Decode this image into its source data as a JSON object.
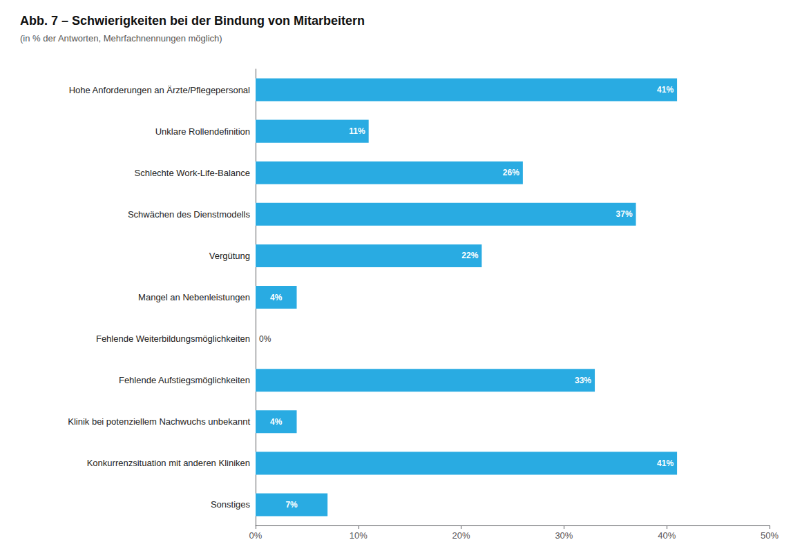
{
  "chart_data": {
    "type": "bar",
    "orientation": "horizontal",
    "title": "Abb. 7 – Schwierigkeiten bei der Bindung von Mitarbeitern",
    "subtitle": "(in % der Antworten, Mehrfachnennungen möglich)",
    "categories": [
      "Hohe Anforderungen an Ärzte/Pflegepersonal",
      "Unklare Rollendefinition",
      "Schlechte Work-Life-Balance",
      "Schwächen des Dienstmodells",
      "Vergütung",
      "Mangel an Nebenleistungen",
      "Fehlende Weiterbildungsmöglichkeiten",
      "Fehlende Aufstiegsmöglichkeiten",
      "Klinik bei potenziellem Nachwuchs unbekannt",
      "Konkurrenzsituation mit anderen Kliniken",
      "Sonstiges"
    ],
    "values": [
      41,
      11,
      26,
      37,
      22,
      4,
      0,
      33,
      4,
      41,
      7
    ],
    "value_labels": [
      "41%",
      "11%",
      "26%",
      "37%",
      "22%",
      "4%",
      "0%",
      "33%",
      "4%",
      "41%",
      "7%"
    ],
    "data_labels": true,
    "color": "#29ABE2",
    "xlim": [
      0,
      50
    ],
    "xticks": [
      {
        "value": 0,
        "label": "0%"
      },
      {
        "value": 10,
        "label": "10%"
      },
      {
        "value": 20,
        "label": "20%"
      },
      {
        "value": 30,
        "label": "30%"
      },
      {
        "value": 40,
        "label": "40%"
      },
      {
        "value": 50,
        "label": "50%"
      }
    ],
    "grid": false
  }
}
